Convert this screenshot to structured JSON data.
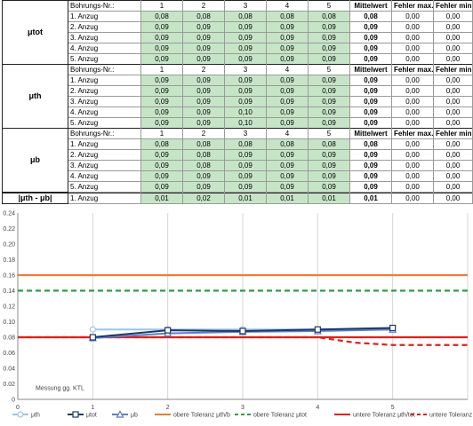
{
  "header_labels": {
    "bore": "Bohrungs-Nr.:",
    "nums": [
      "1",
      "2",
      "3",
      "4",
      "5"
    ],
    "mean": "Mittelwert",
    "errmax": "Fehler max.",
    "errmin": "Fehler min."
  },
  "blocks": [
    {
      "symbol": "μtot",
      "rows": [
        {
          "label": "1. Anzug",
          "values": [
            "0,08",
            "0,08",
            "0,08",
            "0,08",
            "0,08"
          ],
          "mean": "0,08",
          "errmax": "0,00",
          "errmin": "0,00"
        },
        {
          "label": "2. Anzug",
          "values": [
            "0,09",
            "0,09",
            "0,09",
            "0,09",
            "0,09"
          ],
          "mean": "0,09",
          "errmax": "0,00",
          "errmin": "0,00"
        },
        {
          "label": "3. Anzug",
          "values": [
            "0,09",
            "0,09",
            "0,09",
            "0,09",
            "0,09"
          ],
          "mean": "0,09",
          "errmax": "0,00",
          "errmin": "0,00"
        },
        {
          "label": "4. Anzug",
          "values": [
            "0,09",
            "0,09",
            "0,09",
            "0,09",
            "0,09"
          ],
          "mean": "0,09",
          "errmax": "0,00",
          "errmin": "0,00"
        },
        {
          "label": "5. Anzug",
          "values": [
            "0,09",
            "0,09",
            "0,09",
            "0,09",
            "0,09"
          ],
          "mean": "0,09",
          "errmax": "0,00",
          "errmin": "0,00"
        }
      ]
    },
    {
      "symbol": "μth",
      "rows": [
        {
          "label": "1. Anzug",
          "values": [
            "0,09",
            "0,09",
            "0,09",
            "0,09",
            "0,09"
          ],
          "mean": "0,09",
          "errmax": "0,00",
          "errmin": "0,00"
        },
        {
          "label": "2. Anzug",
          "values": [
            "0,09",
            "0,09",
            "0,09",
            "0,09",
            "0,09"
          ],
          "mean": "0,09",
          "errmax": "0,00",
          "errmin": "0,00"
        },
        {
          "label": "3. Anzug",
          "values": [
            "0,09",
            "0,09",
            "0,09",
            "0,09",
            "0,09"
          ],
          "mean": "0,09",
          "errmax": "0,00",
          "errmin": "0,00"
        },
        {
          "label": "4. Anzug",
          "values": [
            "0,09",
            "0,09",
            "0,10",
            "0,09",
            "0,09"
          ],
          "mean": "0,09",
          "errmax": "0,00",
          "errmin": "0,00"
        },
        {
          "label": "5. Anzug",
          "values": [
            "0,09",
            "0,09",
            "0,10",
            "0,09",
            "0,09"
          ],
          "mean": "0,09",
          "errmax": "0,00",
          "errmin": "0,00"
        }
      ]
    },
    {
      "symbol": "μb",
      "rows": [
        {
          "label": "1. Anzug",
          "values": [
            "0,08",
            "0,08",
            "0,08",
            "0,08",
            "0,08"
          ],
          "mean": "0,08",
          "errmax": "0,00",
          "errmin": "0,00"
        },
        {
          "label": "2. Anzug",
          "values": [
            "0,09",
            "0,08",
            "0,09",
            "0,09",
            "0,09"
          ],
          "mean": "0,09",
          "errmax": "0,00",
          "errmin": "0,00"
        },
        {
          "label": "3. Anzug",
          "values": [
            "0,09",
            "0,08",
            "0,09",
            "0,09",
            "0,09"
          ],
          "mean": "0,09",
          "errmax": "0,00",
          "errmin": "0,00"
        },
        {
          "label": "4. Anzug",
          "values": [
            "0,09",
            "0,09",
            "0,09",
            "0,09",
            "0,09"
          ],
          "mean": "0,09",
          "errmax": "0,00",
          "errmin": "0,00"
        },
        {
          "label": "5. Anzug",
          "values": [
            "0,09",
            "0,09",
            "0,09",
            "0,09",
            "0,09"
          ],
          "mean": "0,09",
          "errmax": "0,00",
          "errmin": "0,00"
        }
      ]
    }
  ],
  "diff_row": {
    "symbol": "|μth - μb|",
    "label": "1. Anzug",
    "values": [
      "0,01",
      "0,02",
      "0,01",
      "0,01",
      "0,01"
    ],
    "mean": "0,01",
    "errmax": "0,00",
    "errmin": "0,00"
  },
  "chart_data": {
    "type": "line",
    "xlim": [
      0,
      6
    ],
    "ylim": [
      0,
      0.24
    ],
    "xticks": [
      0,
      1,
      2,
      3,
      4,
      5
    ],
    "yticks": [
      0,
      0.02,
      0.04,
      0.06,
      0.08,
      0.1,
      0.12,
      0.14,
      0.16,
      0.18,
      0.2,
      0.22,
      0.24
    ],
    "ytick_labels": [
      "0",
      "0.02",
      "0.04",
      "0.06",
      "0.08",
      "0.10",
      "0.12",
      "0.14",
      "0.16",
      "0.18",
      "0.20",
      "0.22",
      "0.24"
    ],
    "xtick_labels": [
      "0",
      "1",
      "2",
      "3",
      "4",
      "5"
    ],
    "grid": "vertical",
    "annotation": "Messung gg. KTL",
    "series": [
      {
        "name": "μth",
        "x": [
          1,
          2,
          3,
          4,
          5
        ],
        "y": [
          0.09,
          0.09,
          0.09,
          0.09,
          0.09
        ],
        "color": "#9dc3e6",
        "marker": "circle",
        "dash": ""
      },
      {
        "name": "μtot",
        "x": [
          1,
          2,
          3,
          4,
          5
        ],
        "y": [
          0.08,
          0.089,
          0.088,
          0.09,
          0.092
        ],
        "color": "#1f3864",
        "marker": "square",
        "dash": ""
      },
      {
        "name": "μb",
        "x": [
          1,
          2,
          3,
          4,
          5
        ],
        "y": [
          0.079,
          0.085,
          0.087,
          0.088,
          0.09
        ],
        "color": "#5b7fc7",
        "marker": "triangle",
        "dash": ""
      },
      {
        "name": "obere Toleranz μth/b",
        "x": [
          0,
          6
        ],
        "y": [
          0.16,
          0.16
        ],
        "color": "#ed7d31",
        "marker": "",
        "dash": ""
      },
      {
        "name": "obere Toleranz  μtot",
        "x": [
          0,
          6
        ],
        "y": [
          0.14,
          0.14
        ],
        "color": "#2ea043",
        "marker": "",
        "dash": "6,4"
      },
      {
        "name": "untere Toleranz μth/tot",
        "x": [
          0,
          6
        ],
        "y": [
          0.08,
          0.08
        ],
        "color": "#e02020",
        "marker": "",
        "dash": ""
      },
      {
        "name": "untere Toleranz μb",
        "x": [
          0,
          4,
          4.5,
          5,
          6
        ],
        "y": [
          0.08,
          0.08,
          0.073,
          0.07,
          0.07
        ],
        "color": "#e02020",
        "marker": "",
        "dash": "6,4"
      }
    ]
  }
}
